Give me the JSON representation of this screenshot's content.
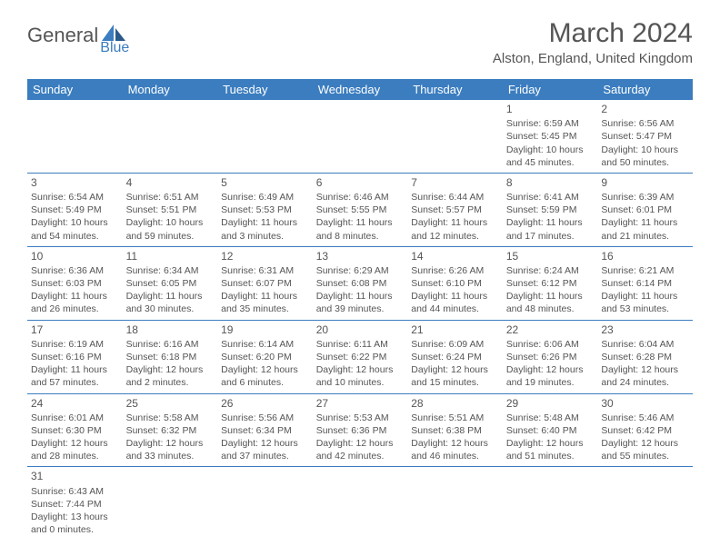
{
  "logo": {
    "main": "General",
    "sub": "Blue"
  },
  "title": "March 2024",
  "location": "Alston, England, United Kingdom",
  "dayHeaders": [
    "Sunday",
    "Monday",
    "Tuesday",
    "Wednesday",
    "Thursday",
    "Friday",
    "Saturday"
  ],
  "colors": {
    "header_bg": "#3b7dbf",
    "header_text": "#ffffff",
    "text": "#555555",
    "border": "#3b7dbf",
    "background": "#ffffff"
  },
  "fonts": {
    "title_size": 30,
    "location_size": 15,
    "header_size": 13,
    "daynum_size": 12,
    "cell_size": 10.5
  },
  "startDayIndex": 5,
  "daysInMonth": 31,
  "days": [
    {
      "n": 1,
      "sunrise": "6:59 AM",
      "sunset": "5:45 PM",
      "daylight": "10 hours and 45 minutes."
    },
    {
      "n": 2,
      "sunrise": "6:56 AM",
      "sunset": "5:47 PM",
      "daylight": "10 hours and 50 minutes."
    },
    {
      "n": 3,
      "sunrise": "6:54 AM",
      "sunset": "5:49 PM",
      "daylight": "10 hours and 54 minutes."
    },
    {
      "n": 4,
      "sunrise": "6:51 AM",
      "sunset": "5:51 PM",
      "daylight": "10 hours and 59 minutes."
    },
    {
      "n": 5,
      "sunrise": "6:49 AM",
      "sunset": "5:53 PM",
      "daylight": "11 hours and 3 minutes."
    },
    {
      "n": 6,
      "sunrise": "6:46 AM",
      "sunset": "5:55 PM",
      "daylight": "11 hours and 8 minutes."
    },
    {
      "n": 7,
      "sunrise": "6:44 AM",
      "sunset": "5:57 PM",
      "daylight": "11 hours and 12 minutes."
    },
    {
      "n": 8,
      "sunrise": "6:41 AM",
      "sunset": "5:59 PM",
      "daylight": "11 hours and 17 minutes."
    },
    {
      "n": 9,
      "sunrise": "6:39 AM",
      "sunset": "6:01 PM",
      "daylight": "11 hours and 21 minutes."
    },
    {
      "n": 10,
      "sunrise": "6:36 AM",
      "sunset": "6:03 PM",
      "daylight": "11 hours and 26 minutes."
    },
    {
      "n": 11,
      "sunrise": "6:34 AM",
      "sunset": "6:05 PM",
      "daylight": "11 hours and 30 minutes."
    },
    {
      "n": 12,
      "sunrise": "6:31 AM",
      "sunset": "6:07 PM",
      "daylight": "11 hours and 35 minutes."
    },
    {
      "n": 13,
      "sunrise": "6:29 AM",
      "sunset": "6:08 PM",
      "daylight": "11 hours and 39 minutes."
    },
    {
      "n": 14,
      "sunrise": "6:26 AM",
      "sunset": "6:10 PM",
      "daylight": "11 hours and 44 minutes."
    },
    {
      "n": 15,
      "sunrise": "6:24 AM",
      "sunset": "6:12 PM",
      "daylight": "11 hours and 48 minutes."
    },
    {
      "n": 16,
      "sunrise": "6:21 AM",
      "sunset": "6:14 PM",
      "daylight": "11 hours and 53 minutes."
    },
    {
      "n": 17,
      "sunrise": "6:19 AM",
      "sunset": "6:16 PM",
      "daylight": "11 hours and 57 minutes."
    },
    {
      "n": 18,
      "sunrise": "6:16 AM",
      "sunset": "6:18 PM",
      "daylight": "12 hours and 2 minutes."
    },
    {
      "n": 19,
      "sunrise": "6:14 AM",
      "sunset": "6:20 PM",
      "daylight": "12 hours and 6 minutes."
    },
    {
      "n": 20,
      "sunrise": "6:11 AM",
      "sunset": "6:22 PM",
      "daylight": "12 hours and 10 minutes."
    },
    {
      "n": 21,
      "sunrise": "6:09 AM",
      "sunset": "6:24 PM",
      "daylight": "12 hours and 15 minutes."
    },
    {
      "n": 22,
      "sunrise": "6:06 AM",
      "sunset": "6:26 PM",
      "daylight": "12 hours and 19 minutes."
    },
    {
      "n": 23,
      "sunrise": "6:04 AM",
      "sunset": "6:28 PM",
      "daylight": "12 hours and 24 minutes."
    },
    {
      "n": 24,
      "sunrise": "6:01 AM",
      "sunset": "6:30 PM",
      "daylight": "12 hours and 28 minutes."
    },
    {
      "n": 25,
      "sunrise": "5:58 AM",
      "sunset": "6:32 PM",
      "daylight": "12 hours and 33 minutes."
    },
    {
      "n": 26,
      "sunrise": "5:56 AM",
      "sunset": "6:34 PM",
      "daylight": "12 hours and 37 minutes."
    },
    {
      "n": 27,
      "sunrise": "5:53 AM",
      "sunset": "6:36 PM",
      "daylight": "12 hours and 42 minutes."
    },
    {
      "n": 28,
      "sunrise": "5:51 AM",
      "sunset": "6:38 PM",
      "daylight": "12 hours and 46 minutes."
    },
    {
      "n": 29,
      "sunrise": "5:48 AM",
      "sunset": "6:40 PM",
      "daylight": "12 hours and 51 minutes."
    },
    {
      "n": 30,
      "sunrise": "5:46 AM",
      "sunset": "6:42 PM",
      "daylight": "12 hours and 55 minutes."
    },
    {
      "n": 31,
      "sunrise": "6:43 AM",
      "sunset": "7:44 PM",
      "daylight": "13 hours and 0 minutes."
    }
  ],
  "labels": {
    "sunrise": "Sunrise:",
    "sunset": "Sunset:",
    "daylight": "Daylight:"
  }
}
